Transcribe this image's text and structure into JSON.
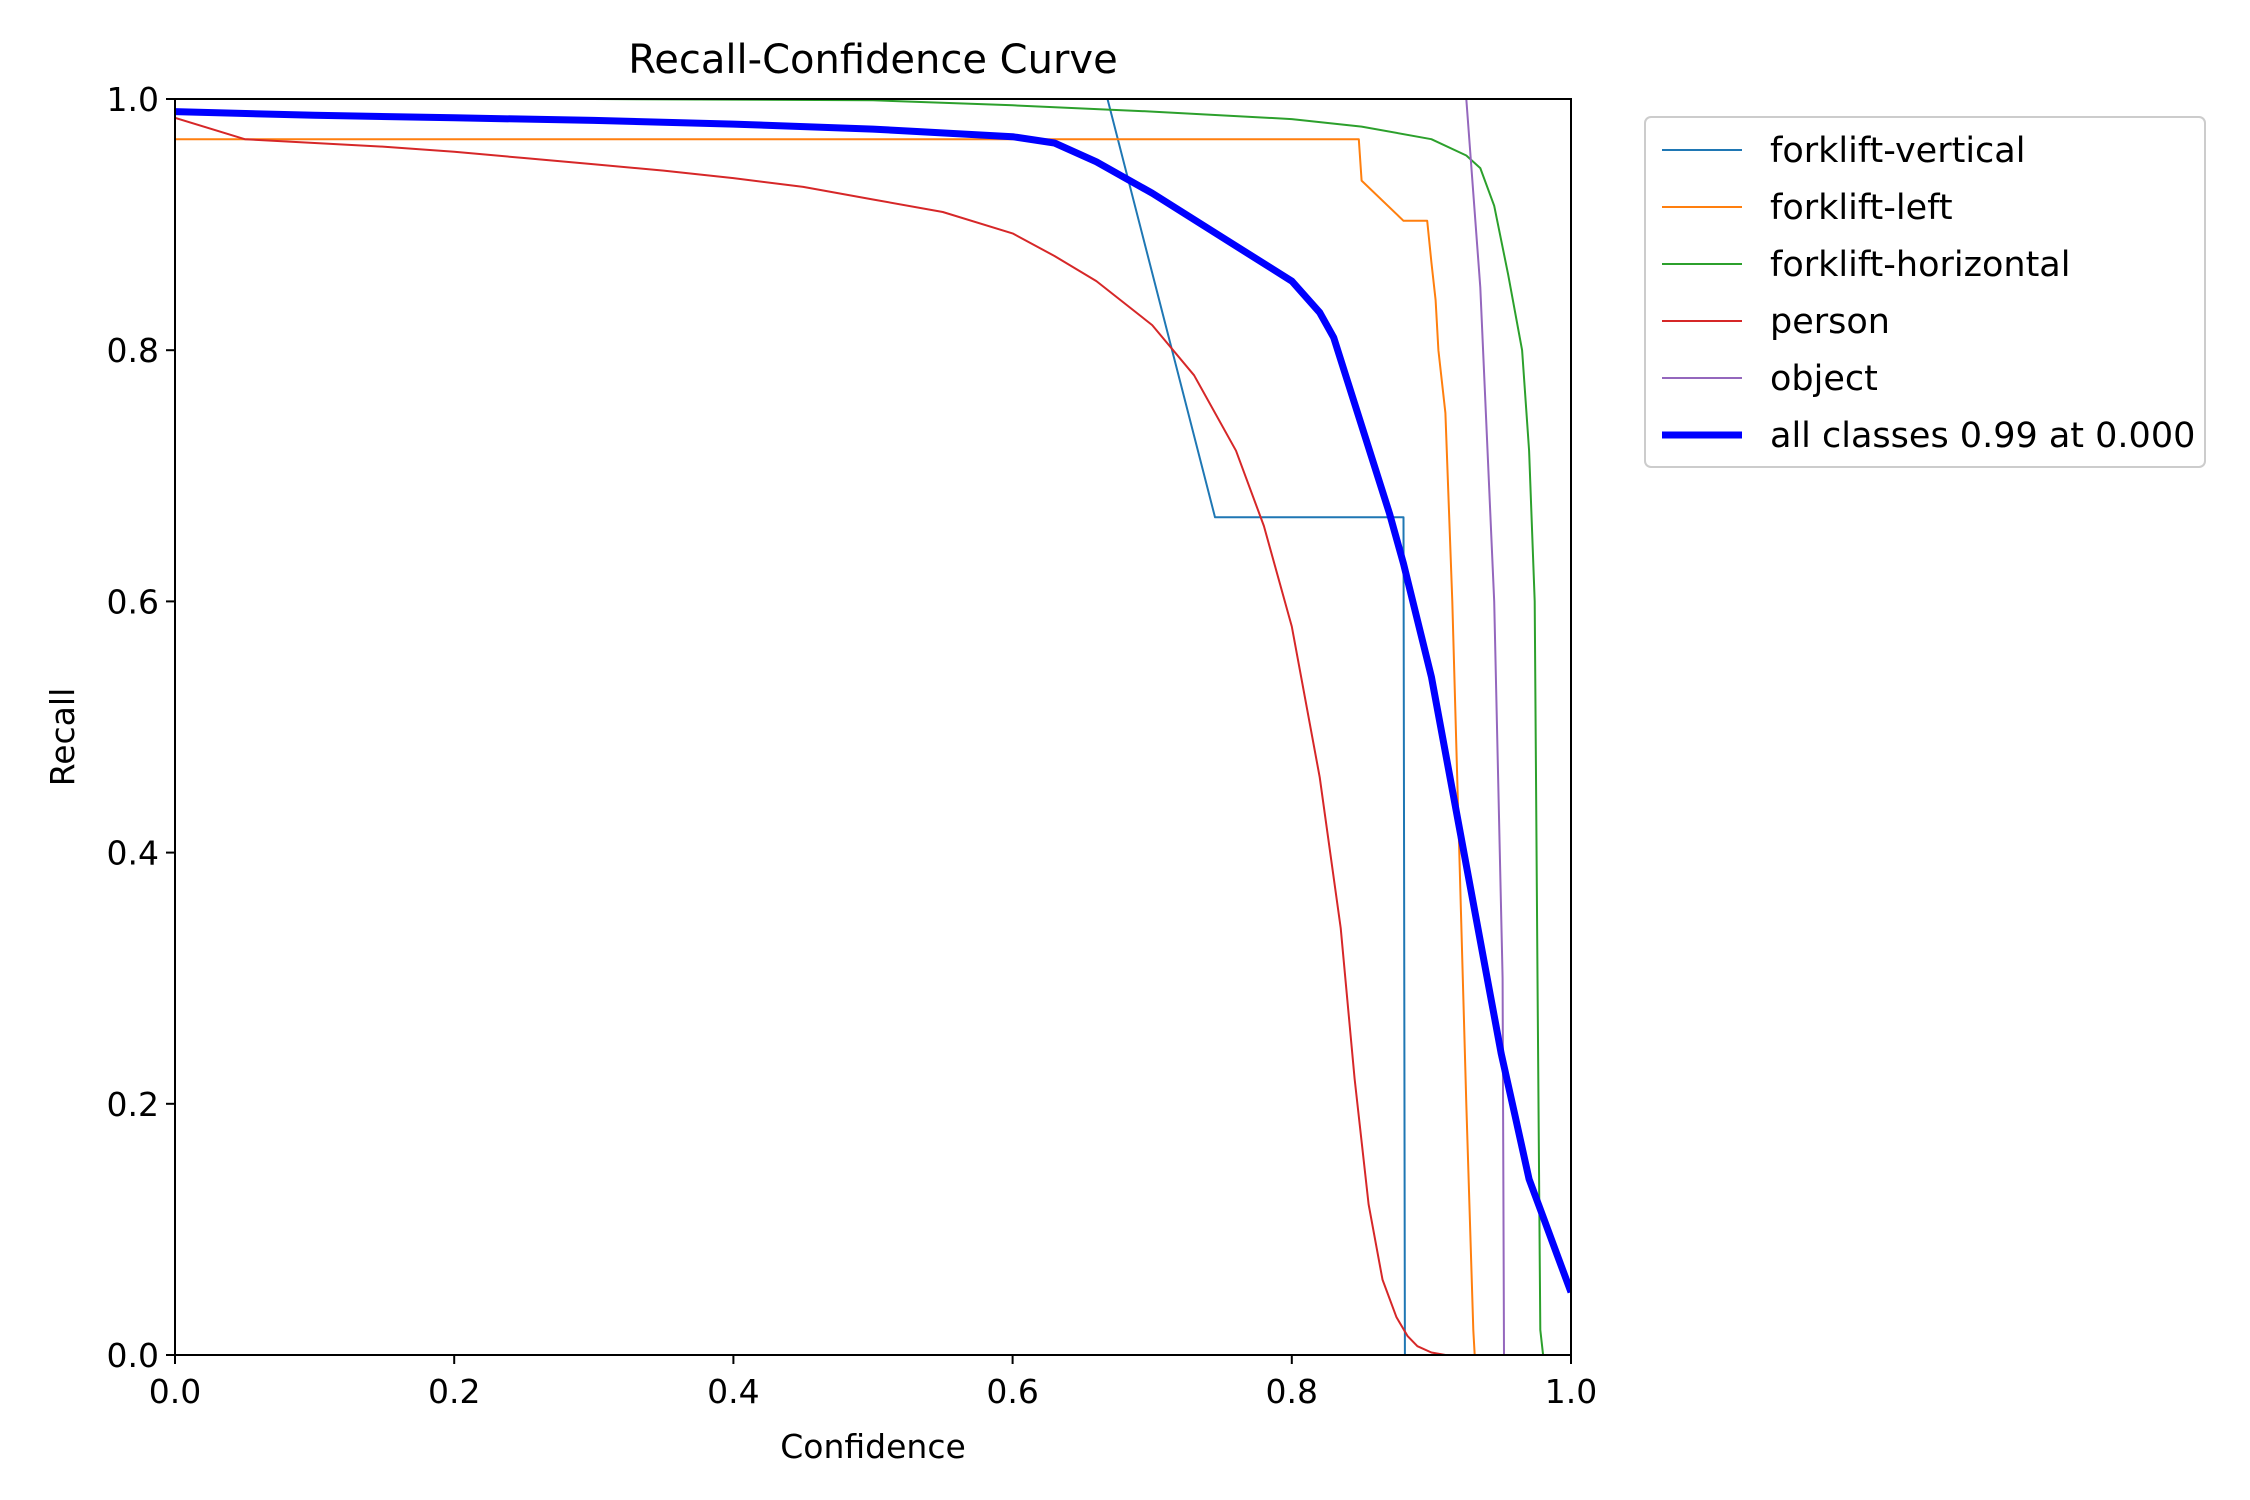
{
  "chart_data": {
    "type": "line",
    "title": "Recall-Confidence Curve",
    "xlabel": "Confidence",
    "ylabel": "Recall",
    "xlim": [
      0,
      1
    ],
    "ylim": [
      0,
      1
    ],
    "xticks": [
      "0.0",
      "0.2",
      "0.4",
      "0.6",
      "0.8",
      "1.0"
    ],
    "yticks": [
      "0.0",
      "0.2",
      "0.4",
      "0.6",
      "0.8",
      "1.0"
    ],
    "grid": false,
    "legend_position": "outside-top-right",
    "series": [
      {
        "name": "forklift-vertical",
        "color": "#1f77b4",
        "width": 2,
        "x": [
          0.0,
          0.668,
          0.745,
          0.88,
          0.881,
          1.0
        ],
        "y": [
          1.0,
          1.0,
          0.667,
          0.667,
          0.0,
          0.0
        ]
      },
      {
        "name": "forklift-left",
        "color": "#ff7f0e",
        "width": 2,
        "x": [
          0.0,
          0.848,
          0.85,
          0.88,
          0.897,
          0.9,
          0.903,
          0.905,
          0.91,
          0.915,
          0.92,
          0.925,
          0.93,
          0.931,
          1.0
        ],
        "y": [
          0.968,
          0.968,
          0.935,
          0.903,
          0.903,
          0.87,
          0.84,
          0.8,
          0.75,
          0.6,
          0.4,
          0.2,
          0.02,
          0.0,
          0.0
        ]
      },
      {
        "name": "forklift-horizontal",
        "color": "#2ca02c",
        "width": 2,
        "x": [
          0.0,
          0.3,
          0.5,
          0.6,
          0.7,
          0.8,
          0.85,
          0.9,
          0.925,
          0.935,
          0.945,
          0.955,
          0.965,
          0.97,
          0.974,
          0.976,
          0.978,
          0.98,
          0.985,
          1.0
        ],
        "y": [
          1.0,
          1.0,
          0.999,
          0.995,
          0.99,
          0.984,
          0.978,
          0.968,
          0.955,
          0.945,
          0.915,
          0.86,
          0.8,
          0.72,
          0.6,
          0.3,
          0.02,
          0.0,
          0.0,
          0.0
        ]
      },
      {
        "name": "person",
        "color": "#d62728",
        "width": 2,
        "x": [
          0.0,
          0.05,
          0.1,
          0.15,
          0.2,
          0.25,
          0.3,
          0.35,
          0.4,
          0.45,
          0.5,
          0.55,
          0.6,
          0.63,
          0.66,
          0.7,
          0.73,
          0.76,
          0.78,
          0.8,
          0.82,
          0.835,
          0.845,
          0.855,
          0.865,
          0.875,
          0.883,
          0.89,
          0.9,
          0.91,
          0.93,
          1.0
        ],
        "y": [
          0.985,
          0.968,
          0.965,
          0.962,
          0.958,
          0.953,
          0.948,
          0.943,
          0.937,
          0.93,
          0.92,
          0.91,
          0.893,
          0.875,
          0.855,
          0.82,
          0.78,
          0.72,
          0.66,
          0.58,
          0.46,
          0.34,
          0.22,
          0.12,
          0.06,
          0.03,
          0.015,
          0.007,
          0.002,
          0.0,
          0.0,
          0.0
        ]
      },
      {
        "name": "object",
        "color": "#9467bd",
        "width": 2,
        "x": [
          0.925,
          0.935,
          0.945,
          0.951,
          0.952,
          0.955,
          1.0
        ],
        "y": [
          1.0,
          0.85,
          0.6,
          0.3,
          0.0,
          0.0,
          0.0
        ]
      },
      {
        "name": "all classes 0.99 at 0.000",
        "color": "#0000ff",
        "width": 7,
        "x": [
          0.0,
          0.1,
          0.2,
          0.3,
          0.4,
          0.5,
          0.6,
          0.63,
          0.66,
          0.7,
          0.75,
          0.8,
          0.82,
          0.83,
          0.85,
          0.87,
          0.88,
          0.9,
          0.92,
          0.94,
          0.95,
          0.96,
          0.97,
          0.98,
          0.99,
          1.0
        ],
        "y": [
          0.99,
          0.987,
          0.985,
          0.983,
          0.98,
          0.976,
          0.97,
          0.965,
          0.95,
          0.925,
          0.89,
          0.855,
          0.83,
          0.81,
          0.74,
          0.67,
          0.63,
          0.54,
          0.42,
          0.3,
          0.24,
          0.19,
          0.14,
          0.11,
          0.08,
          0.05
        ]
      }
    ]
  }
}
